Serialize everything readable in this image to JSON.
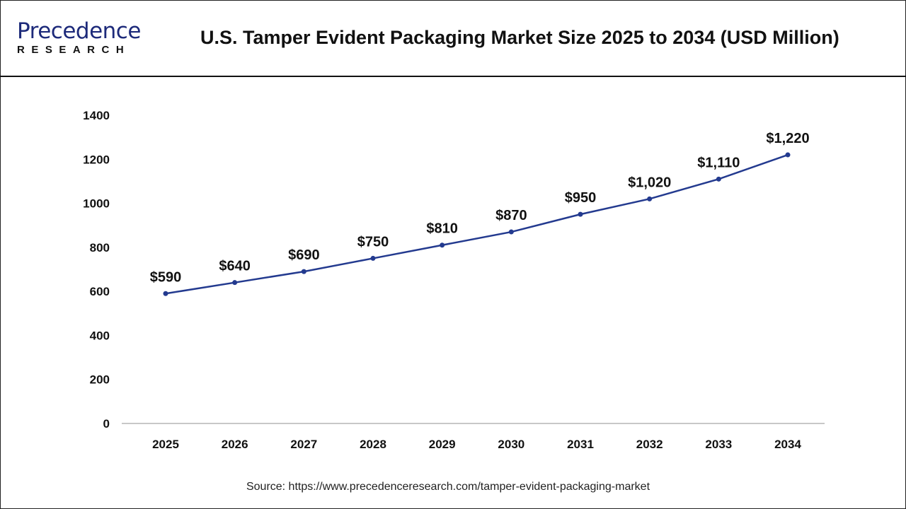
{
  "header": {
    "logo_main": "Precedence",
    "logo_sub": "RESEARCH",
    "title": "U.S. Tamper Evident Packaging Market Size 2025 to 2034 (USD Million)"
  },
  "source": "Source: https://www.precedenceresearch.com/tamper-evident-packaging-market",
  "chart_data": {
    "type": "line",
    "title": "U.S. Tamper Evident Packaging Market Size 2025 to 2034 (USD Million)",
    "categories": [
      "2025",
      "2026",
      "2027",
      "2028",
      "2029",
      "2030",
      "2031",
      "2032",
      "2033",
      "2034"
    ],
    "values": [
      590,
      640,
      690,
      750,
      810,
      870,
      950,
      1020,
      1110,
      1220
    ],
    "data_labels": [
      "$590",
      "$640",
      "$690",
      "$750",
      "$810",
      "$870",
      "$950",
      "$1,020",
      "$1,110",
      "$1,220"
    ],
    "yticks": [
      "0",
      "200",
      "400",
      "600",
      "800",
      "1000",
      "1200",
      "1400"
    ],
    "ylim": [
      0,
      1400
    ],
    "grid": false,
    "line_color": "#233a8f",
    "xlabel": "",
    "ylabel": ""
  }
}
